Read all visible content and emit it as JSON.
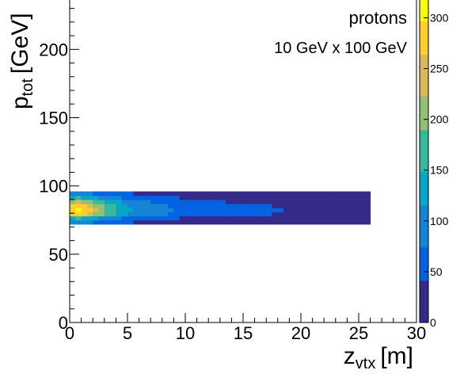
{
  "chart_data": {
    "type": "heatmap",
    "title": "",
    "annotations": [
      "protons",
      "10 GeV x 100 GeV"
    ],
    "xlabel": {
      "main": "z",
      "sub": "vtx",
      "unit": "[m]"
    },
    "ylabel": {
      "main": "p",
      "sub": "tot",
      "unit": "[GeV]"
    },
    "xlim": [
      0,
      30
    ],
    "ylim": [
      0,
      300
    ],
    "x_ticks": [
      0,
      5,
      10,
      15,
      20,
      25,
      30
    ],
    "y_ticks": [
      0,
      50,
      100,
      150,
      200,
      250,
      300
    ],
    "z_ticks": [
      0,
      50,
      100,
      150,
      200,
      250,
      300
    ],
    "zlim": [
      0,
      330
    ],
    "palette": [
      "#352a87",
      "#0363e1",
      "#1485d4",
      "#06a7c6",
      "#38b99e",
      "#92bf73",
      "#d9ba56",
      "#fcce2e",
      "#f9fb0e"
    ],
    "y_bin_edges": [
      72,
      75,
      78,
      81,
      84,
      87,
      90,
      93,
      96
    ],
    "x_bin_width": 0.5,
    "x_max": 26,
    "cells": [
      [
        0,
        0,
        80,
        130,
        190,
        240,
        260
      ],
      [
        0.5,
        0,
        90,
        150,
        225,
        285,
        300
      ],
      [
        1.0,
        0,
        85,
        145,
        215,
        275,
        290
      ],
      [
        1.5,
        0,
        80,
        135,
        200,
        255,
        270
      ],
      [
        2.0,
        0,
        75,
        125,
        185,
        230,
        245
      ],
      [
        2.5,
        0,
        65,
        110,
        165,
        205,
        215
      ],
      [
        3.0,
        0,
        60,
        100,
        145,
        180,
        185
      ],
      [
        3.5,
        0,
        55,
        90,
        130,
        160,
        165
      ],
      [
        4.0,
        0,
        50,
        80,
        115,
        140,
        145
      ],
      [
        4.5,
        0,
        45,
        72,
        105,
        125,
        130
      ],
      [
        5.0,
        0,
        40,
        65,
        95,
        112,
        118
      ],
      [
        6.0,
        0,
        35,
        55,
        80,
        95,
        100
      ],
      [
        8.0,
        0,
        25,
        45,
        65,
        78,
        82
      ],
      [
        10.0,
        0,
        20,
        35,
        50,
        62,
        65
      ],
      [
        14.0,
        0,
        12,
        22,
        35,
        45,
        48
      ],
      [
        20.0,
        0,
        8,
        14,
        22,
        30,
        32
      ],
      [
        26.0,
        0,
        4,
        8,
        12,
        18,
        20
      ]
    ]
  }
}
